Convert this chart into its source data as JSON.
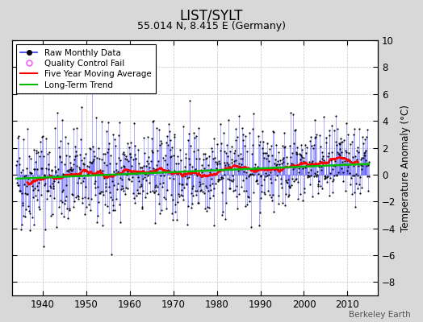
{
  "title": "LIST/SYLT",
  "subtitle": "55.014 N, 8.415 E (Germany)",
  "ylabel": "Temperature Anomaly (°C)",
  "watermark": "Berkeley Earth",
  "xlim": [
    1933,
    2017
  ],
  "ylim": [
    -9,
    10
  ],
  "yticks": [
    -8,
    -6,
    -4,
    -2,
    0,
    2,
    4,
    6,
    8,
    10
  ],
  "xticks": [
    1940,
    1950,
    1960,
    1970,
    1980,
    1990,
    2000,
    2010
  ],
  "raw_color": "#3333FF",
  "trend_color": "#00BB00",
  "moving_avg_color": "#FF0000",
  "qc_color": "#FF44FF",
  "background_color": "#D8D8D8",
  "plot_bg_color": "#FFFFFF",
  "grid_color": "#AAAAAA",
  "seed": 42,
  "n_months": 972,
  "start_year": 1934.0
}
